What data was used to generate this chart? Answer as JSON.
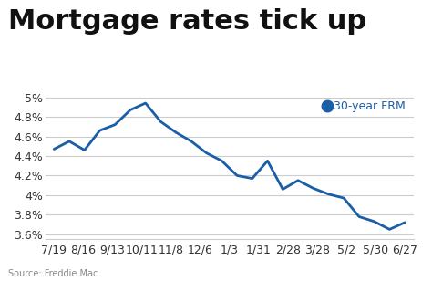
{
  "title": "Mortgage rates tick up",
  "source": "Source: Freddie Mac",
  "legend_label": "30-year FRM",
  "x_labels": [
    "7/19",
    "8/16",
    "9/13",
    "10/11",
    "11/8",
    "12/6",
    "1/3",
    "1/31",
    "2/28",
    "3/28",
    "5/2",
    "5/30",
    "6/27"
  ],
  "y_values": [
    4.47,
    4.55,
    4.46,
    4.66,
    4.72,
    4.87,
    4.94,
    4.75,
    4.64,
    4.55,
    4.43,
    4.35,
    4.2,
    4.17,
    4.35,
    4.06,
    4.15,
    4.07,
    4.01,
    3.97,
    3.78,
    3.73,
    3.65,
    3.72
  ],
  "line_color": "#1a5ea8",
  "marker_color": "#1a5ea8",
  "background_color": "#ffffff",
  "grid_color": "#cccccc",
  "title_fontsize": 22,
  "label_fontsize": 9,
  "ylim": [
    3.55,
    5.05
  ],
  "yticks": [
    3.6,
    3.8,
    4.0,
    4.2,
    4.4,
    4.6,
    4.8,
    5.0
  ]
}
